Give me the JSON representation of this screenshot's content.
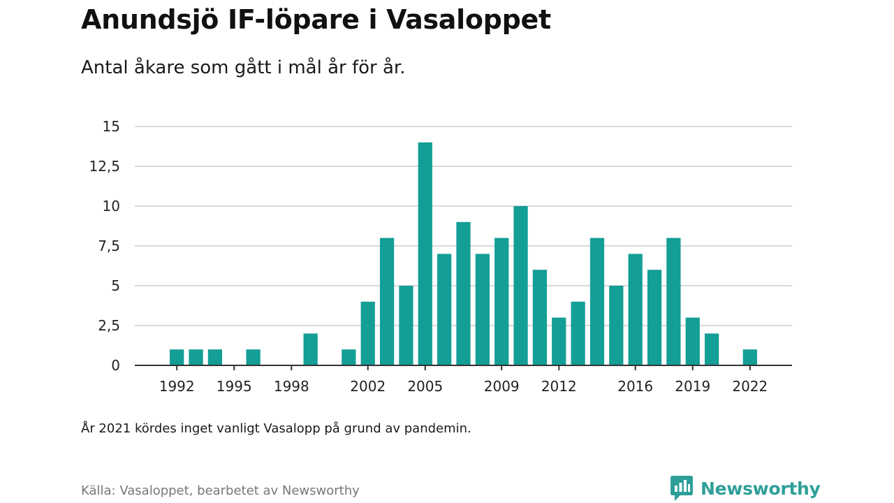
{
  "title": "Anundsjö IF-löpare i Vasaloppet",
  "subtitle": "Antal åkare som gått i mål år för år.",
  "note": "År 2021 kördes inget vanligt Vasalopp på grund av pandemin.",
  "source": "Källa: Vasaloppet, bearbetet av Newsworthy",
  "brand": {
    "name": "Newsworthy",
    "icon": "newsworthy-logo-icon"
  },
  "colors": {
    "bar": "#139e96",
    "grid": "#d9d9d9",
    "axis": "#333333",
    "brand": "#2e9f98"
  },
  "chart_data": {
    "type": "bar",
    "title": "Anundsjö IF-löpare i Vasaloppet",
    "subtitle": "Antal åkare som gått i mål år för år.",
    "xlabel": "",
    "ylabel": "",
    "xlim": [
      1989.8,
      2024.2
    ],
    "ylim": [
      0,
      15
    ],
    "grid": true,
    "legend": "none",
    "x_ticks": [
      1992,
      1995,
      1998,
      2002,
      2005,
      2009,
      2012,
      2016,
      2019,
      2022
    ],
    "y_ticks": [
      0,
      2.5,
      5,
      7.5,
      10,
      12.5,
      15
    ],
    "y_tick_labels": [
      "0",
      "2,5",
      "5",
      "7,5",
      "10",
      "12,5",
      "15"
    ],
    "x": [
      1992,
      1993,
      1994,
      1996,
      1999,
      2001,
      2002,
      2003,
      2004,
      2005,
      2006,
      2007,
      2008,
      2009,
      2010,
      2011,
      2012,
      2013,
      2014,
      2015,
      2016,
      2017,
      2018,
      2019,
      2020,
      2022
    ],
    "values": [
      1,
      1,
      1,
      1,
      2,
      1,
      4,
      8,
      5,
      14,
      7,
      9,
      7,
      8,
      10,
      6,
      3,
      4,
      8,
      5,
      7,
      6,
      8,
      3,
      2,
      1
    ]
  }
}
